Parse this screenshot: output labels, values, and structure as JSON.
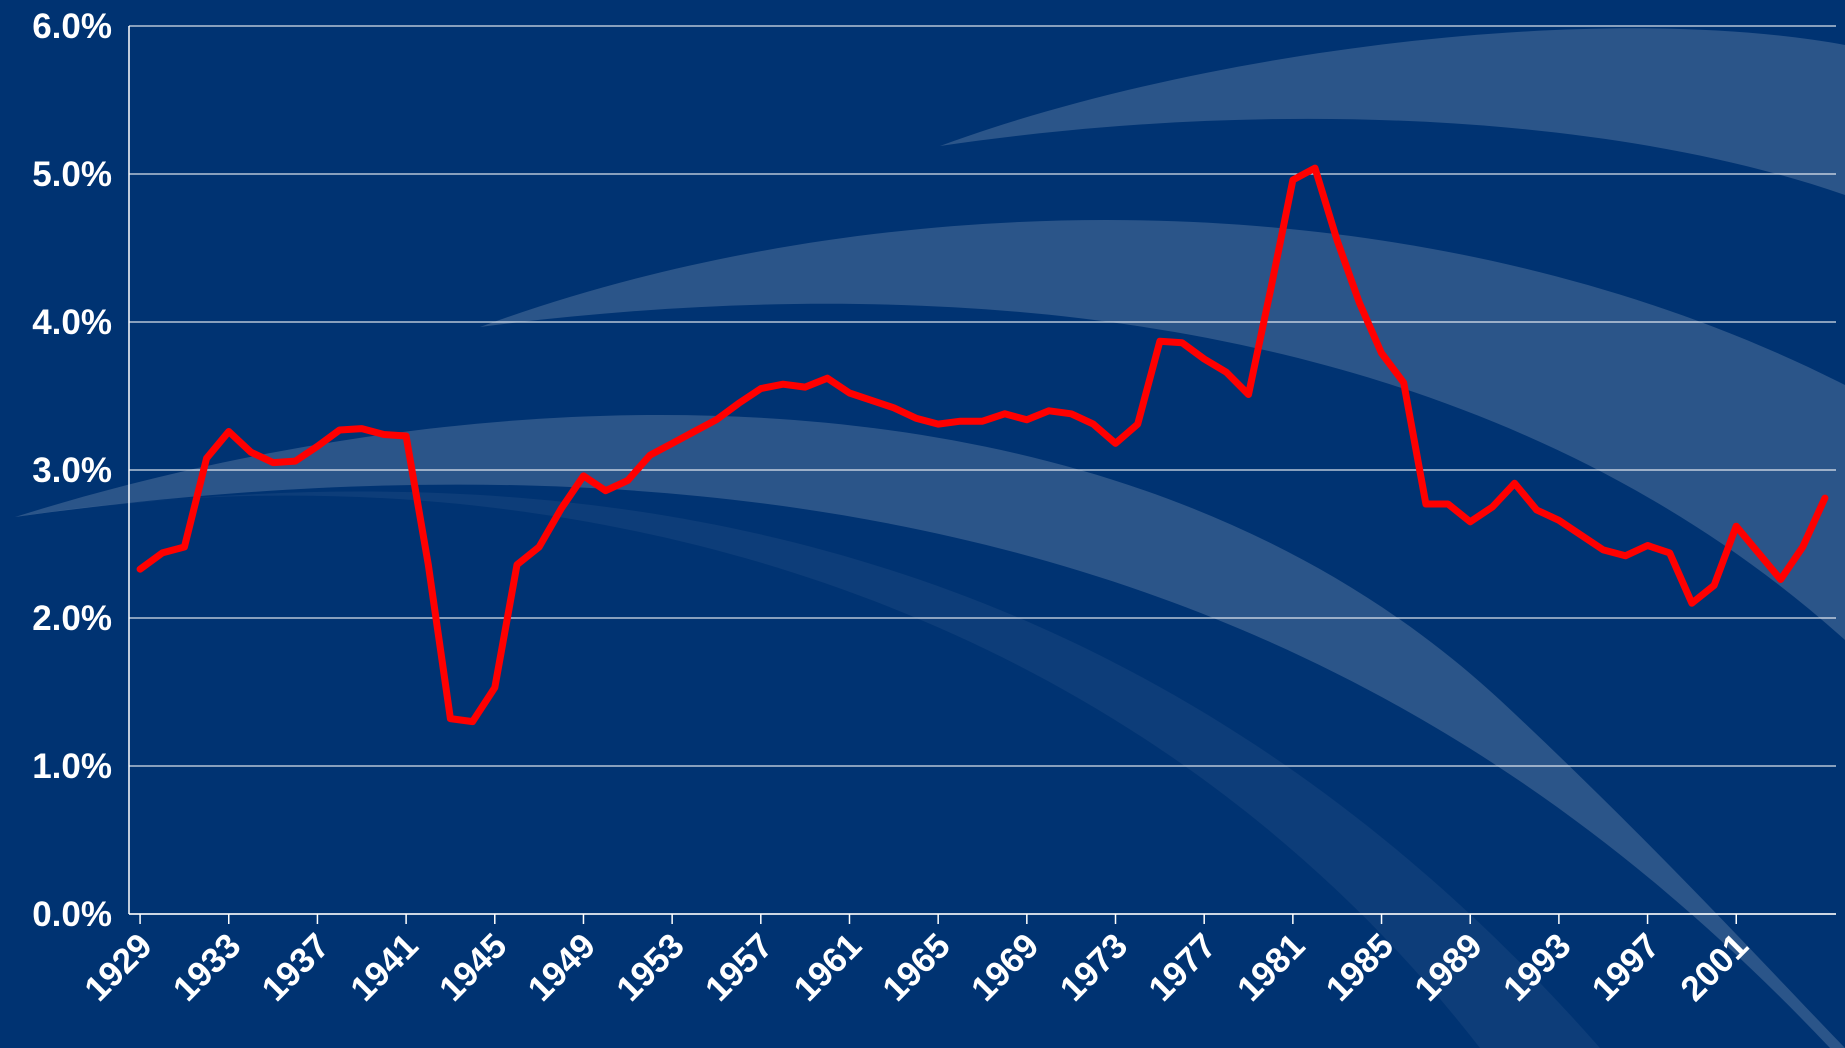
{
  "chart_data": {
    "type": "line",
    "x": [
      1929,
      1930,
      1931,
      1932,
      1933,
      1934,
      1935,
      1936,
      1937,
      1938,
      1939,
      1940,
      1941,
      1942,
      1943,
      1944,
      1945,
      1946,
      1947,
      1948,
      1949,
      1950,
      1951,
      1952,
      1953,
      1954,
      1955,
      1956,
      1957,
      1958,
      1959,
      1960,
      1961,
      1962,
      1963,
      1964,
      1965,
      1966,
      1967,
      1968,
      1969,
      1970,
      1971,
      1972,
      1973,
      1974,
      1975,
      1976,
      1977,
      1978,
      1979,
      1980,
      1981,
      1982,
      1983,
      1984,
      1985,
      1986,
      1987,
      1988,
      1989,
      1990,
      1991,
      1992,
      1993,
      1994,
      1995,
      1996,
      1997,
      1998,
      1999,
      2000,
      2001,
      2002,
      2003,
      2004,
      2005
    ],
    "series": [
      {
        "color": "#ff0000",
        "values": [
          2.33,
          2.44,
          2.48,
          3.08,
          3.26,
          3.12,
          3.05,
          3.06,
          3.16,
          3.27,
          3.28,
          3.24,
          3.23,
          2.36,
          1.32,
          1.3,
          1.53,
          2.36,
          2.48,
          2.74,
          2.96,
          2.86,
          2.93,
          3.1,
          3.18,
          3.26,
          3.34,
          3.45,
          3.55,
          3.58,
          3.56,
          3.62,
          3.52,
          3.47,
          3.42,
          3.35,
          3.31,
          3.33,
          3.33,
          3.38,
          3.34,
          3.4,
          3.38,
          3.31,
          3.18,
          3.31,
          3.87,
          3.86,
          3.75,
          3.66,
          3.51,
          4.22,
          4.96,
          5.04,
          4.55,
          4.13,
          3.79,
          3.59,
          2.77,
          2.77,
          2.65,
          2.75,
          2.91,
          2.73,
          2.66,
          2.56,
          2.46,
          2.42,
          2.49,
          2.44,
          2.1,
          2.22,
          2.62,
          2.44,
          2.26,
          2.48,
          2.81
        ]
      }
    ],
    "xlim": [
      1928.5,
      2005.5
    ],
    "xticks": [
      1929,
      1933,
      1937,
      1941,
      1945,
      1949,
      1953,
      1957,
      1961,
      1965,
      1969,
      1973,
      1977,
      1981,
      1985,
      1989,
      1993,
      1997,
      2001
    ],
    "ylim": [
      0,
      6
    ],
    "yticks": [
      {
        "value": 0,
        "label": "0.0%"
      },
      {
        "value": 1,
        "label": "1.0%"
      },
      {
        "value": 2,
        "label": "2.0%"
      },
      {
        "value": 3,
        "label": "3.0%"
      },
      {
        "value": 4,
        "label": "4.0%"
      },
      {
        "value": 5,
        "label": "5.0%"
      },
      {
        "value": 6,
        "label": "6.0%"
      }
    ],
    "grid": true
  }
}
